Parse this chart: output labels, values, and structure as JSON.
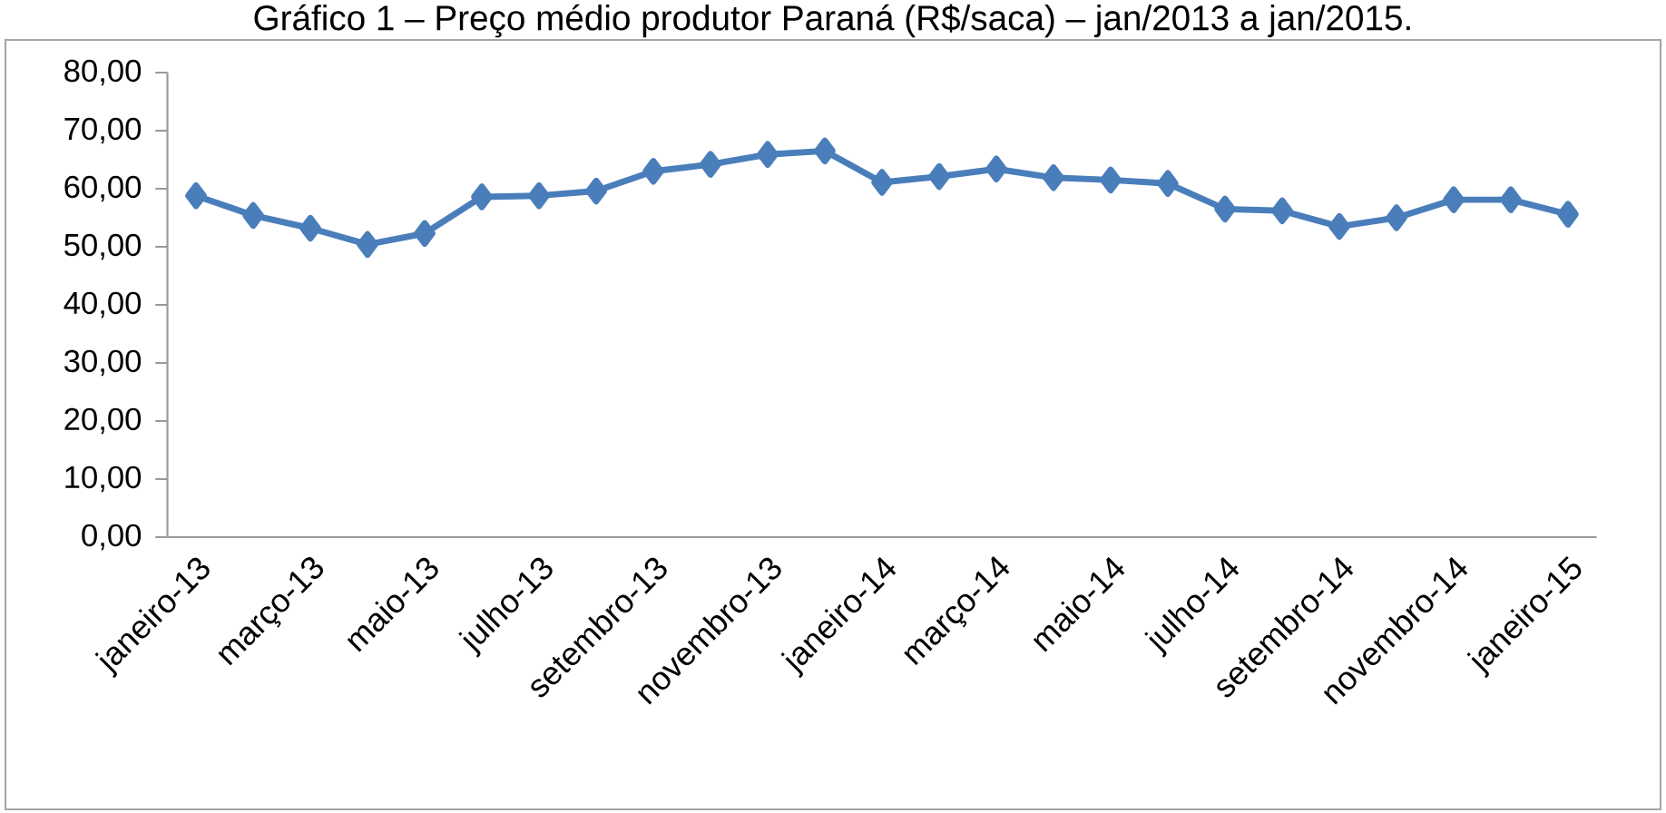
{
  "chart_data": {
    "type": "line",
    "title": "Gráfico 1 – Preço médio produtor Paraná (R$/saca) – jan/2013 a jan/2015.",
    "categories": [
      "janeiro-13",
      null,
      "março-13",
      null,
      "maio-13",
      null,
      "julho-13",
      null,
      "setembro-13",
      null,
      "novembro-13",
      null,
      "janeiro-14",
      null,
      "março-14",
      null,
      "maio-14",
      null,
      "julho-14",
      null,
      "setembro-14",
      null,
      "novembro-14",
      null,
      "janeiro-15"
    ],
    "series": [
      {
        "color": "#4a7ebb",
        "values": [
          58.8,
          55.4,
          53.2,
          50.4,
          52.3,
          58.6,
          58.8,
          59.6,
          63.0,
          64.2,
          65.9,
          66.5,
          61.1,
          62.1,
          63.4,
          61.9,
          61.5,
          60.9,
          56.5,
          56.2,
          53.5,
          55.0,
          58.1,
          58.1,
          55.6
        ]
      }
    ],
    "ylim": [
      0,
      80
    ],
    "yticks": [
      {
        "value": 0,
        "label": "0,00"
      },
      {
        "value": 10,
        "label": "10,00"
      },
      {
        "value": 20,
        "label": "20,00"
      },
      {
        "value": 30,
        "label": "30,00"
      },
      {
        "value": 40,
        "label": "40,00"
      },
      {
        "value": 50,
        "label": "50,00"
      },
      {
        "value": 60,
        "label": "60,00"
      },
      {
        "value": 70,
        "label": "70,00"
      },
      {
        "value": 80,
        "label": "80,00"
      }
    ],
    "grid": false,
    "marker": "diamond",
    "line_style": "solid"
  }
}
